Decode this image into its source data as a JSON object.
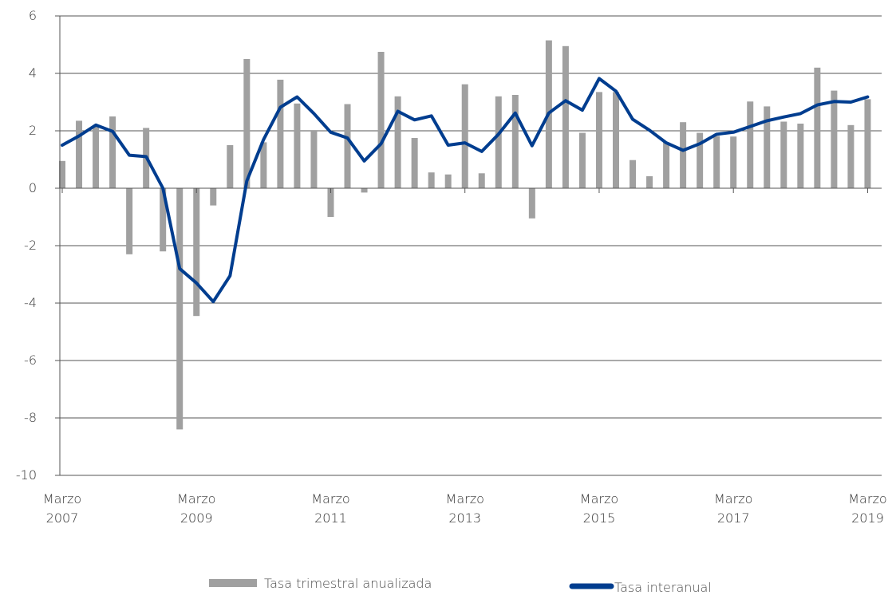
{
  "chart_data": {
    "type": "bar",
    "title": "",
    "xlabel": "",
    "ylabel": "",
    "ylim": [
      -10,
      6
    ],
    "yticks": [
      6,
      4,
      2,
      0,
      -2,
      -4,
      -6,
      -8,
      -10
    ],
    "ytick_labels": [
      "6",
      "4",
      "2",
      "0",
      "-2",
      "-4",
      "-6",
      "-8",
      "-10"
    ],
    "grid": true,
    "legend_position": "bottom",
    "x_tick_labels": [
      {
        "month": "Marzo",
        "year": "2007",
        "index": 0
      },
      {
        "month": "Marzo",
        "year": "2009",
        "index": 8
      },
      {
        "month": "Marzo",
        "year": "2011",
        "index": 16
      },
      {
        "month": "Marzo",
        "year": "2013",
        "index": 24
      },
      {
        "month": "Marzo",
        "year": "2015",
        "index": 32
      },
      {
        "month": "Marzo",
        "year": "2017",
        "index": 40
      },
      {
        "month": "Marzo",
        "year": "2019",
        "index": 48
      }
    ],
    "series": [
      {
        "name": "Tasa trimestral anualizada",
        "type": "bar",
        "color": "#a0a0a0",
        "values": [
          0.95,
          2.35,
          2.15,
          2.5,
          -2.3,
          2.1,
          -2.2,
          -8.4,
          -4.45,
          -0.6,
          1.5,
          4.5,
          1.6,
          3.78,
          2.95,
          2.0,
          -1.0,
          2.93,
          -0.15,
          4.75,
          3.2,
          1.75,
          0.55,
          0.48,
          3.62,
          0.52,
          3.2,
          3.25,
          -1.05,
          5.15,
          4.95,
          1.93,
          3.35,
          3.35,
          0.98,
          0.42,
          1.6,
          2.3,
          1.93,
          1.82,
          1.8,
          3.02,
          2.85,
          2.32,
          2.25,
          4.2,
          3.4,
          2.2,
          3.1
        ]
      },
      {
        "name": "Tasa interanual",
        "type": "line",
        "color": "#003d8f",
        "values": [
          1.5,
          1.82,
          2.2,
          1.98,
          1.15,
          1.1,
          0.0,
          -2.8,
          -3.3,
          -3.95,
          -3.05,
          0.25,
          1.7,
          2.82,
          3.18,
          2.6,
          1.95,
          1.75,
          0.95,
          1.55,
          2.68,
          2.38,
          2.52,
          1.5,
          1.58,
          1.28,
          1.88,
          2.62,
          1.48,
          2.62,
          3.05,
          2.72,
          3.82,
          3.38,
          2.4,
          2.02,
          1.58,
          1.32,
          1.55,
          1.88,
          1.95,
          2.15,
          2.35,
          2.48,
          2.6,
          2.9,
          3.02,
          3.0,
          3.18
        ]
      }
    ]
  }
}
